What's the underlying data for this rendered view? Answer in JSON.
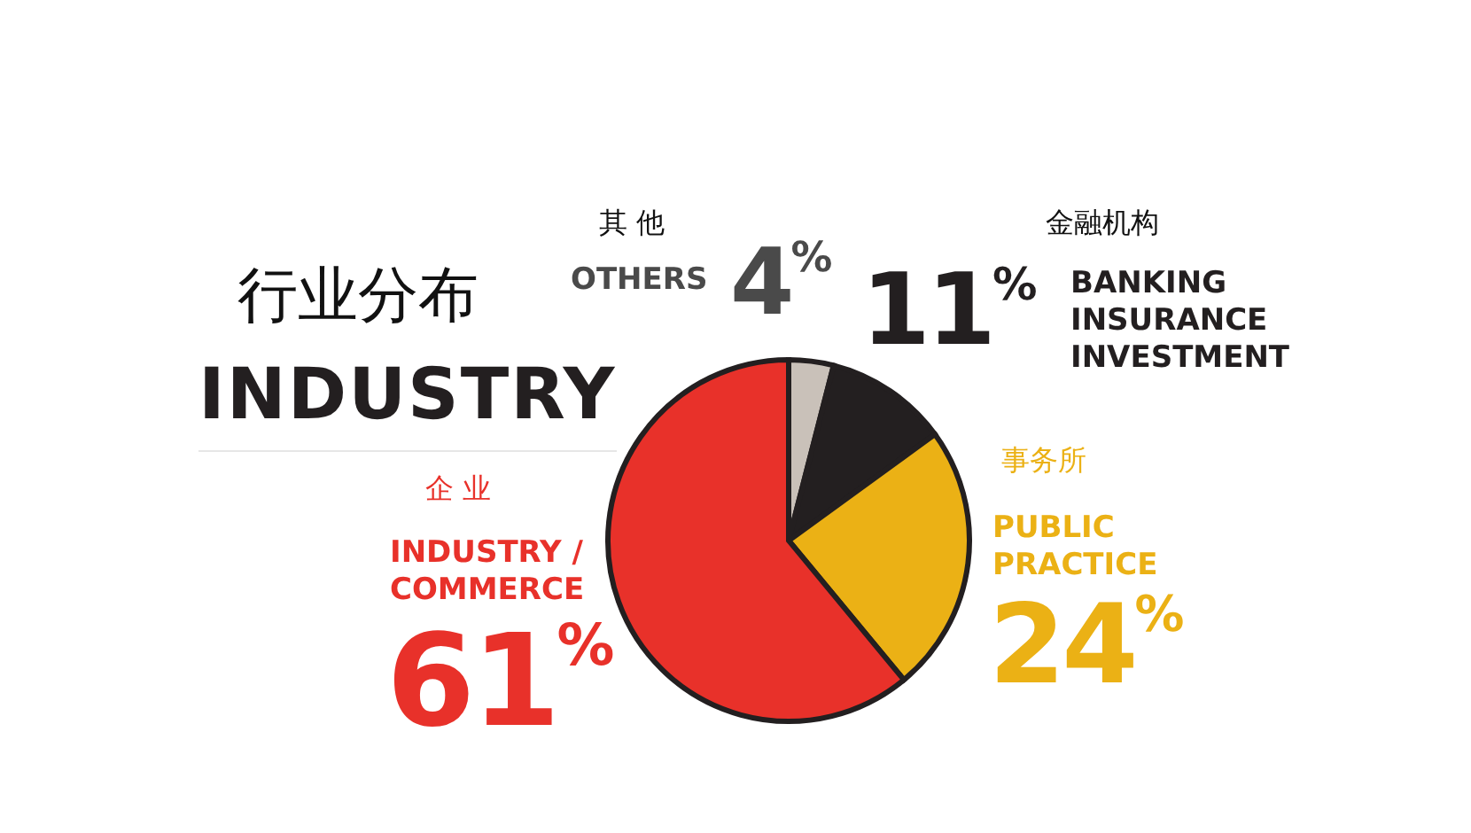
{
  "chart_data": {
    "type": "pie",
    "title": "行业分布",
    "subtitle": "INDUSTRY",
    "categories": [
      "其 他\nOTHERS",
      "金融机构\nBANKING\nINSURANCE\nINVESTMENT",
      "事务所\nPUBLIC\nPRACTICE",
      "企 业\nINDUSTRY /\nCOMMERCE"
    ],
    "values": [
      4,
      11,
      24,
      61
    ],
    "colors": [
      "#c9c1b9",
      "#231f20",
      "#ebb115",
      "#e8312a"
    ],
    "value_labels": [
      "4%",
      "11%",
      "24%",
      "61%"
    ]
  }
}
